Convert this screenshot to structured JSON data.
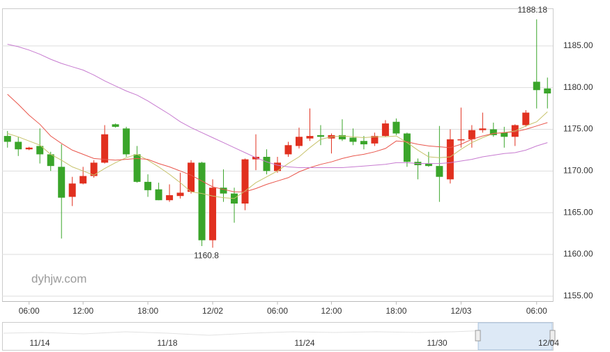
{
  "chart_data": {
    "type": "candlestick",
    "categories": [
      null,
      null,
      "06:00",
      null,
      null,
      null,
      null,
      "12:00",
      null,
      null,
      null,
      null,
      null,
      "18:00",
      null,
      null,
      null,
      null,
      null,
      "12/02",
      null,
      null,
      null,
      null,
      null,
      "06:00",
      null,
      null,
      null,
      null,
      "12:00",
      null,
      null,
      null,
      null,
      null,
      "18:00",
      null,
      null,
      null,
      null,
      null,
      "12/03",
      null,
      null,
      null,
      null,
      null,
      null,
      "06:00",
      null
    ],
    "open": [
      1174.2,
      1173.5,
      1172.6,
      1173.0,
      1172.0,
      1170.5,
      1166.9,
      1168.5,
      1169.4,
      1171.0,
      1175.6,
      1175.1,
      1172.0,
      1168.7,
      1167.8,
      1166.5,
      1167.0,
      1167.5,
      1171.0,
      1161.7,
      1168.0,
      1167.3,
      1166.1,
      1171.4,
      1171.7,
      1170.0,
      1172.0,
      1173.0,
      1173.9,
      1174.3,
      1173.9,
      1174.3,
      1174.0,
      1173.6,
      1173.3,
      1174.2,
      1175.9,
      1174.5,
      1171.1,
      1170.9,
      1170.6,
      1169.0,
      1173.7,
      1173.8,
      1174.9,
      1175.0,
      1174.6,
      1174.1,
      1175.5,
      1180.7,
      1179.9
    ],
    "high": [
      1174.8,
      1174.1,
      1172.9,
      1175.1,
      1172.3,
      1173.2,
      1169.3,
      1170.5,
      1171.3,
      1175.5,
      1175.7,
      1175.3,
      1173.0,
      1169.6,
      1168.6,
      1168.4,
      1169.8,
      1171.3,
      1171.1,
      1169.0,
      1170.2,
      1168.0,
      1171.5,
      1174.4,
      1172.6,
      1171.7,
      1173.5,
      1175.2,
      1177.5,
      1175.5,
      1174.5,
      1176.2,
      1175.1,
      1174.2,
      1174.6,
      1176.1,
      1176.3,
      1174.6,
      1171.5,
      1172.3,
      1175.4,
      1175.0,
      1177.6,
      1175.5,
      1177.0,
      1175.8,
      1175.3,
      1175.6,
      1177.3,
      1188.18,
      1181.2
    ],
    "low": [
      1172.8,
      1171.8,
      1172.5,
      1170.9,
      1170.0,
      1161.9,
      1165.8,
      1168.4,
      1169.2,
      1170.9,
      1175.2,
      1171.7,
      1168.6,
      1166.9,
      1166.5,
      1166.3,
      1166.7,
      1167.3,
      1161.0,
      1160.8,
      1166.3,
      1163.8,
      1165.3,
      1170.1,
      1169.6,
      1169.8,
      1171.7,
      1172.7,
      1173.6,
      1173.1,
      1172.1,
      1173.6,
      1173.1,
      1172.6,
      1173.0,
      1174.1,
      1174.3,
      1170.5,
      1169.0,
      1170.5,
      1166.3,
      1168.5,
      1172.8,
      1172.8,
      1174.6,
      1174.1,
      1172.8,
      1173.0,
      1175.3,
      1177.5,
      1177.5
    ],
    "close": [
      1173.5,
      1172.6,
      1172.8,
      1172.0,
      1170.6,
      1166.8,
      1168.5,
      1169.4,
      1171.0,
      1174.4,
      1175.3,
      1172.0,
      1168.7,
      1167.7,
      1166.5,
      1167.1,
      1167.4,
      1171.0,
      1161.7,
      1168.0,
      1167.3,
      1166.1,
      1171.4,
      1171.7,
      1170.0,
      1171.0,
      1173.1,
      1174.1,
      1174.2,
      1174.1,
      1174.3,
      1173.8,
      1173.5,
      1173.2,
      1174.2,
      1175.7,
      1174.5,
      1171.1,
      1170.7,
      1170.6,
      1169.3,
      1173.8,
      1173.8,
      1174.9,
      1175.1,
      1174.3,
      1174.1,
      1175.5,
      1177.0,
      1179.7,
      1179.3
    ],
    "up_color": "#e1301f",
    "down_color": "#3aa52a",
    "series": [
      {
        "color": "#c7c26a",
        "values": [
          1174.5,
          1174.1,
          1173.6,
          1173.1,
          1172.0,
          1171.3,
          1170.5,
          1170.0,
          1169.5,
          1170.3,
          1171.0,
          1171.6,
          1172.0,
          1171.3,
          1170.5,
          1169.6,
          1168.6,
          1167.5,
          1167.3,
          1167.0,
          1166.8,
          1166.7,
          1167.6,
          1168.6,
          1169.3,
          1170.0,
          1170.9,
          1171.7,
          1172.8,
          1173.8,
          1174.1,
          1174.2,
          1174.1,
          1174.0,
          1174.1,
          1174.1,
          1174.2,
          1173.4,
          1172.5,
          1171.7,
          1171.6,
          1171.7,
          1172.6,
          1173.4,
          1174.0,
          1174.5,
          1174.6,
          1174.8,
          1175.4,
          1175.9,
          1177.1
        ]
      },
      {
        "color": "#e9564c",
        "values": [
          1179.2,
          1178.0,
          1176.7,
          1175.6,
          1174.2,
          1173.3,
          1172.5,
          1172.0,
          1171.5,
          1171.4,
          1171.3,
          1171.4,
          1171.5,
          1171.4,
          1170.9,
          1170.5,
          1170.0,
          1169.5,
          1168.8,
          1168.1,
          1167.8,
          1167.5,
          1167.5,
          1167.9,
          1168.4,
          1168.8,
          1169.2,
          1169.9,
          1170.4,
          1170.8,
          1171.1,
          1171.5,
          1171.8,
          1172.0,
          1172.3,
          1172.7,
          1173.6,
          1173.5,
          1173.2,
          1173.0,
          1172.9,
          1172.8,
          1173.2,
          1173.8,
          1174.2,
          1174.5,
          1174.6,
          1174.7,
          1175.0,
          1175.4,
          1175.8
        ]
      },
      {
        "color": "#c77bd0",
        "values": [
          1185.2,
          1184.9,
          1184.5,
          1184.0,
          1183.4,
          1182.9,
          1182.5,
          1182.1,
          1181.5,
          1180.8,
          1180.2,
          1179.6,
          1179.1,
          1178.4,
          1177.6,
          1176.8,
          1175.9,
          1175.2,
          1174.6,
          1174.0,
          1173.4,
          1172.8,
          1172.2,
          1171.6,
          1171.1,
          1170.7,
          1170.5,
          1170.4,
          1170.4,
          1170.4,
          1170.4,
          1170.4,
          1170.5,
          1170.6,
          1170.7,
          1170.8,
          1171.0,
          1171.0,
          1170.9,
          1170.9,
          1170.9,
          1171.0,
          1171.2,
          1171.4,
          1171.7,
          1171.9,
          1172.1,
          1172.2,
          1172.5,
          1173.0,
          1173.4
        ]
      }
    ],
    "ylim": [
      1154.4,
      1189.5
    ],
    "yticks": [
      {
        "value": 1155,
        "label": "1155.00"
      },
      {
        "value": 1160,
        "label": "1160.00"
      },
      {
        "value": 1165,
        "label": "1165.00"
      },
      {
        "value": 1170,
        "label": "1170.00"
      },
      {
        "value": 1175,
        "label": "1175.00"
      },
      {
        "value": 1180,
        "label": "1180.00"
      },
      {
        "value": 1185,
        "label": "1185.00"
      }
    ],
    "grid": true,
    "watermark": "dyhjw.com",
    "navigator": {
      "labels": [
        "11/14",
        "11/18",
        "11/24",
        "11/30",
        "12/04"
      ]
    }
  }
}
